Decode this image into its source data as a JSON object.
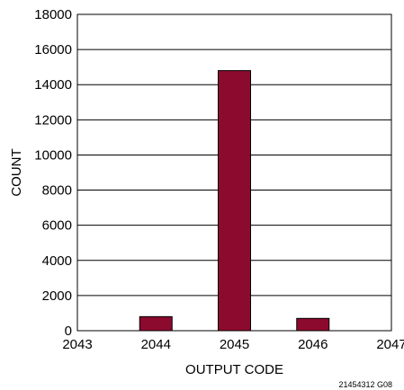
{
  "chart_data": {
    "type": "bar",
    "title": "",
    "xlabel": "OUTPUT CODE",
    "ylabel": "COUNT",
    "x_ticks": [
      "2043",
      "2044",
      "2045",
      "2046",
      "2047"
    ],
    "y_ticks": [
      "0",
      "2000",
      "4000",
      "6000",
      "8000",
      "10000",
      "12000",
      "14000",
      "16000",
      "18000"
    ],
    "xlim": [
      2043,
      2047
    ],
    "ylim": [
      0,
      18000
    ],
    "categories": [
      2044,
      2045,
      2046
    ],
    "values": [
      800,
      14800,
      700
    ],
    "bar_color": "#8c0a2e",
    "grid": "horizontal",
    "figure_id": "21454312 G08"
  }
}
